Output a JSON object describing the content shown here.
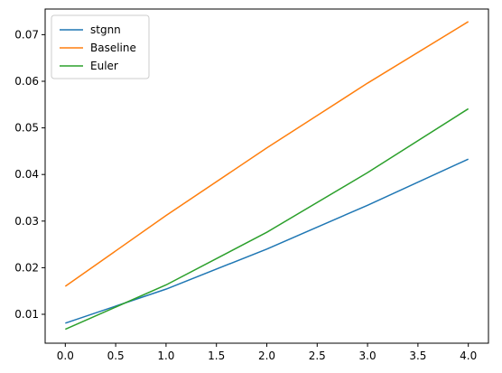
{
  "chart_data": {
    "type": "line",
    "title": "",
    "xlabel": "",
    "ylabel": "",
    "xlim": [
      -0.2,
      4.2
    ],
    "ylim": [
      0.0038,
      0.0755
    ],
    "grid": false,
    "legend_position": "top-left",
    "xticks": [
      0.0,
      0.5,
      1.0,
      1.5,
      2.0,
      2.5,
      3.0,
      3.5,
      4.0
    ],
    "xtick_labels": [
      "0.0",
      "0.5",
      "1.0",
      "1.5",
      "2.0",
      "2.5",
      "3.0",
      "3.5",
      "4.0"
    ],
    "yticks": [
      0.01,
      0.02,
      0.03,
      0.04,
      0.05,
      0.06,
      0.07
    ],
    "ytick_labels": [
      "0.01",
      "0.02",
      "0.03",
      "0.04",
      "0.05",
      "0.06",
      "0.07"
    ],
    "x": [
      0,
      1,
      2,
      3,
      4
    ],
    "series": [
      {
        "name": "stgnn",
        "color": "#1f77b4",
        "values": [
          0.0081,
          0.0154,
          0.024,
          0.0334,
          0.0433
        ]
      },
      {
        "name": "Baseline",
        "color": "#ff7f0e",
        "values": [
          0.016,
          0.0312,
          0.0457,
          0.0596,
          0.0728
        ]
      },
      {
        "name": "Euler",
        "color": "#2ca02c",
        "values": [
          0.0068,
          0.0163,
          0.0276,
          0.0404,
          0.0541
        ]
      }
    ]
  }
}
